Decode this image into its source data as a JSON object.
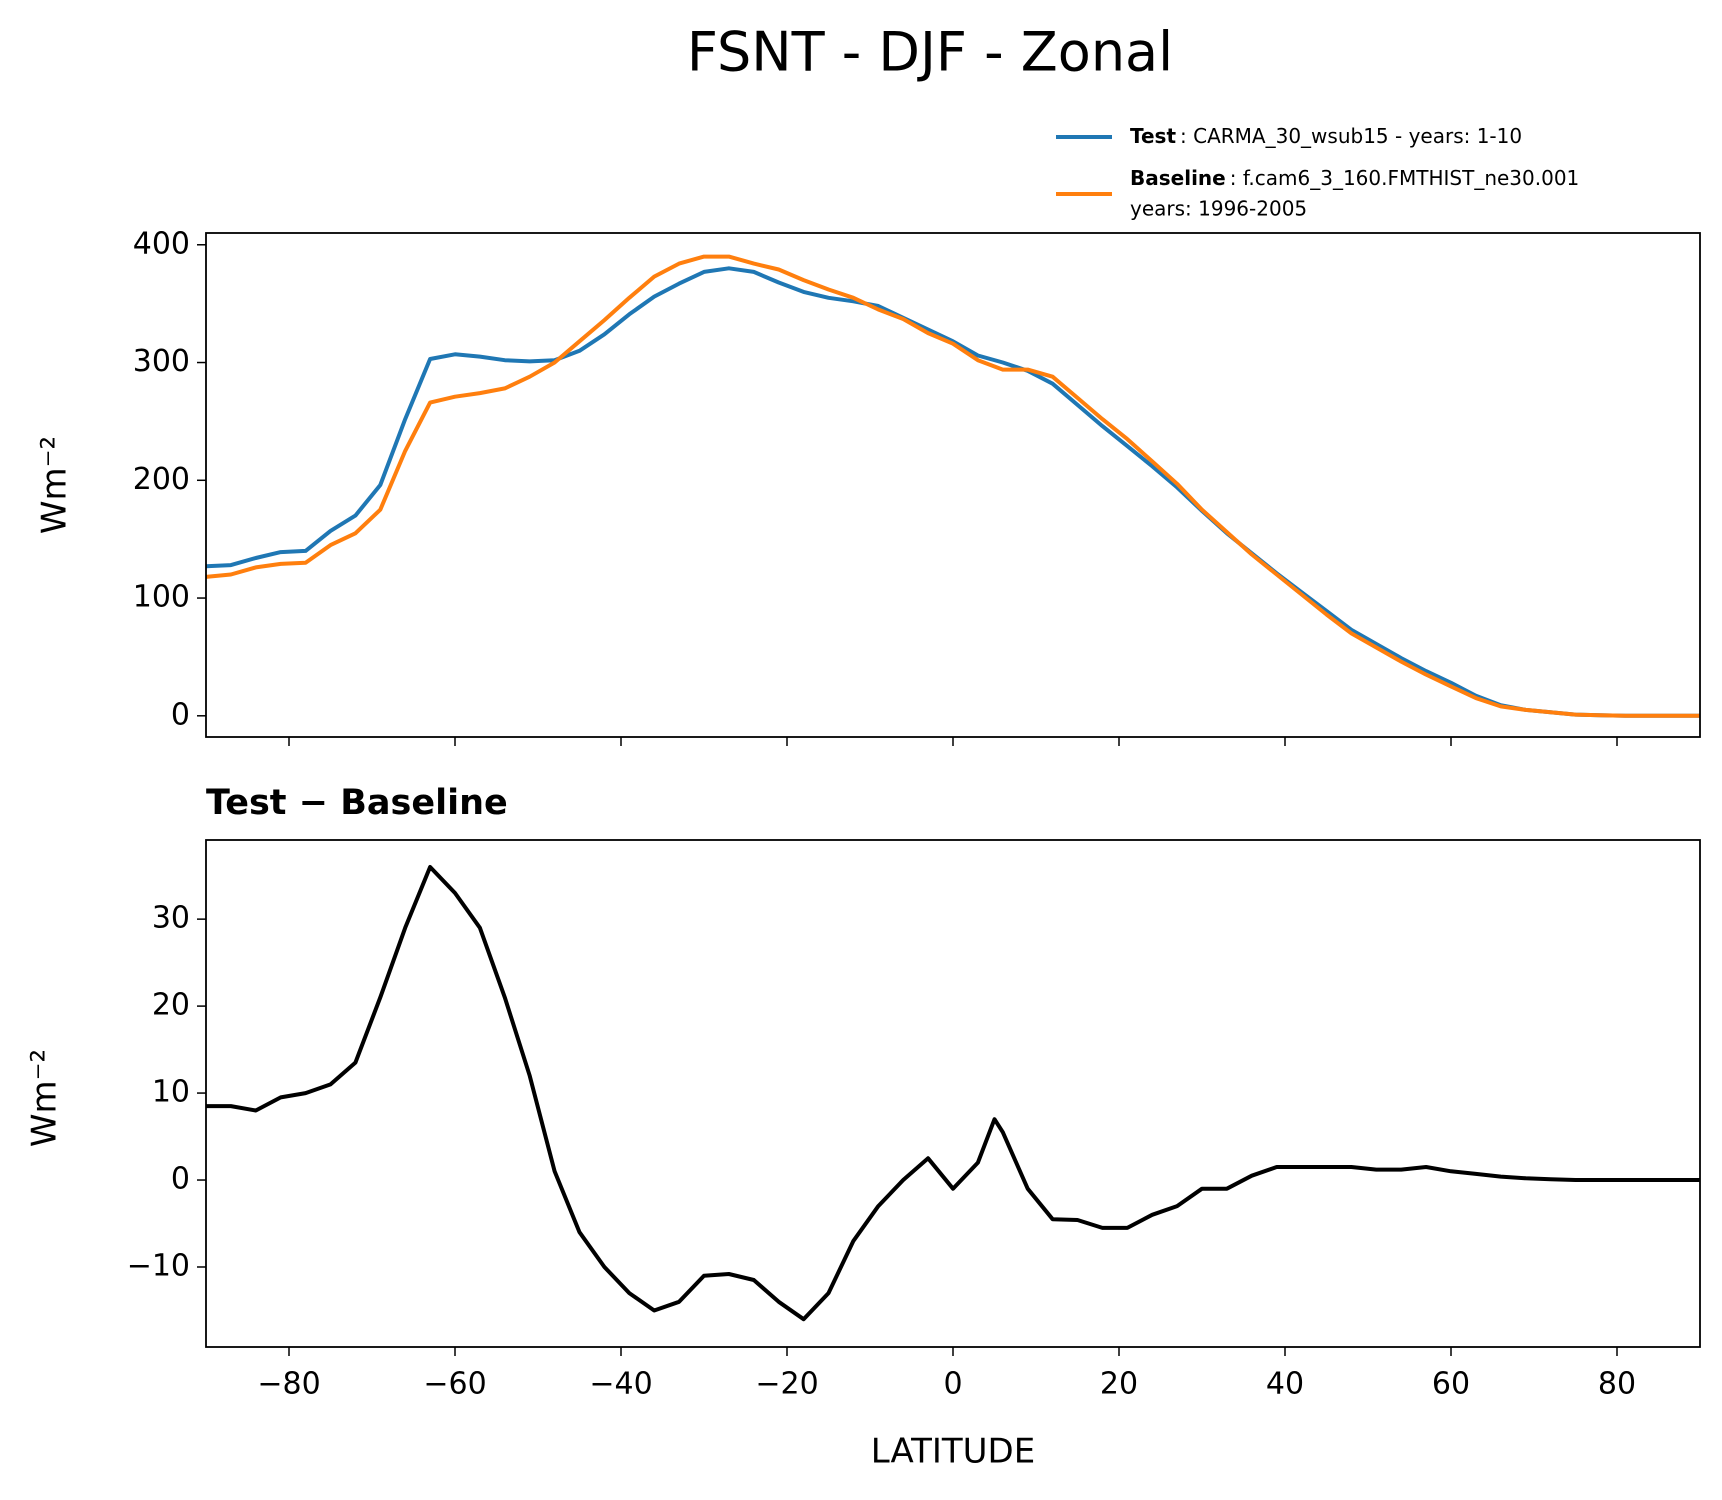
{
  "chart_data": [
    {
      "type": "line",
      "title": "FSNT - DJF - Zonal",
      "ylabel": "Wm⁻²",
      "x": [
        -90,
        -87,
        -84,
        -81,
        -78,
        -75,
        -72,
        -69,
        -66,
        -63,
        -60,
        -57,
        -54,
        -51,
        -48,
        -45,
        -42,
        -39,
        -36,
        -33,
        -30,
        -27,
        -24,
        -21,
        -18,
        -15,
        -12,
        -9,
        -6,
        -3,
        0,
        3,
        6,
        9,
        12,
        15,
        18,
        21,
        24,
        27,
        30,
        33,
        36,
        39,
        42,
        45,
        48,
        51,
        54,
        57,
        60,
        63,
        66,
        69,
        72,
        75,
        78,
        81,
        84,
        87,
        90
      ],
      "series": [
        {
          "name": "Test",
          "label": ": CARMA_30_wsub15 - years: 1-10",
          "color": "#1f77b4",
          "values": [
            127,
            128,
            134,
            139,
            140,
            157,
            170,
            196,
            252,
            303,
            307,
            305,
            302,
            301,
            302,
            310,
            324,
            341,
            356,
            367,
            377,
            380,
            377,
            368,
            360,
            355,
            352,
            348,
            338,
            328,
            318,
            306,
            300,
            293,
            282,
            264,
            246,
            229,
            212,
            194,
            174,
            155,
            138,
            121,
            105,
            89,
            73,
            61,
            49,
            38,
            28,
            17,
            9,
            5,
            3,
            1,
            0.5,
            0,
            0,
            0,
            0
          ]
        },
        {
          "name": "Baseline",
          "label": ": f.cam6_3_160.FMTHIST_ne30.001",
          "label2": "years: 1996-2005",
          "color": "#ff7f0e",
          "values": [
            118,
            120,
            126,
            129,
            130,
            145,
            155,
            175,
            225,
            266,
            271,
            274,
            278,
            288,
            300,
            318,
            336,
            355,
            373,
            384,
            390,
            390,
            384,
            379,
            370,
            362,
            355,
            345,
            337,
            325,
            316,
            302,
            294,
            294,
            288,
            270,
            252,
            235,
            216,
            197,
            175,
            156,
            137,
            120,
            103,
            86,
            70,
            58,
            46,
            35,
            25,
            15,
            8,
            5,
            3,
            1,
            0.5,
            0,
            0,
            0,
            0
          ]
        }
      ],
      "xlim": [
        -90,
        90
      ],
      "ylim": [
        -18,
        410
      ],
      "yticks": [
        0,
        100,
        200,
        300,
        400
      ]
    },
    {
      "type": "line",
      "title": "Test − Baseline",
      "ylabel": "Wm⁻²",
      "xlabel": "LATITUDE",
      "x": [
        -90,
        -87,
        -84,
        -81,
        -78,
        -75,
        -72,
        -69,
        -66,
        -63,
        -60,
        -57,
        -54,
        -51,
        -48,
        -45,
        -42,
        -39,
        -36,
        -33,
        -30,
        -27,
        -24,
        -21,
        -18,
        -15,
        -12,
        -9,
        -6,
        -3,
        0,
        3,
        5,
        6,
        9,
        12,
        15,
        18,
        21,
        24,
        27,
        30,
        33,
        36,
        39,
        42,
        45,
        48,
        51,
        54,
        57,
        60,
        63,
        66,
        69,
        72,
        75,
        78,
        81,
        84,
        87,
        90
      ],
      "series": [
        {
          "name": "Test − Baseline",
          "color": "#000000",
          "values": [
            8.5,
            8.5,
            8,
            9.5,
            10,
            11,
            13.5,
            21,
            29,
            36,
            33,
            29,
            21,
            12,
            1,
            -6,
            -10,
            -13,
            -15,
            -14,
            -11,
            -10.8,
            -11.5,
            -14,
            -16,
            -13,
            -7,
            -3,
            0,
            2.5,
            -1,
            2,
            7,
            5.5,
            -1,
            -4.5,
            -4.6,
            -5.5,
            -5.5,
            -4,
            -3,
            -1,
            -1,
            0.5,
            1.5,
            1.5,
            1.5,
            1.5,
            1.2,
            1.2,
            1.5,
            1,
            0.7,
            0.4,
            0.2,
            0.1,
            0,
            0,
            0,
            0,
            0,
            0
          ]
        }
      ],
      "xlim": [
        -90,
        90
      ],
      "ylim": [
        -19.2,
        39.1
      ],
      "xticks": [
        {
          "value": -80,
          "label": "−80"
        },
        {
          "value": -60,
          "label": "−60"
        },
        {
          "value": -40,
          "label": "−40"
        },
        {
          "value": -20,
          "label": "−20"
        },
        0,
        20,
        40,
        60,
        80
      ],
      "yticks": [
        {
          "value": -10,
          "label": "−10"
        },
        0,
        10,
        20,
        30
      ]
    }
  ]
}
